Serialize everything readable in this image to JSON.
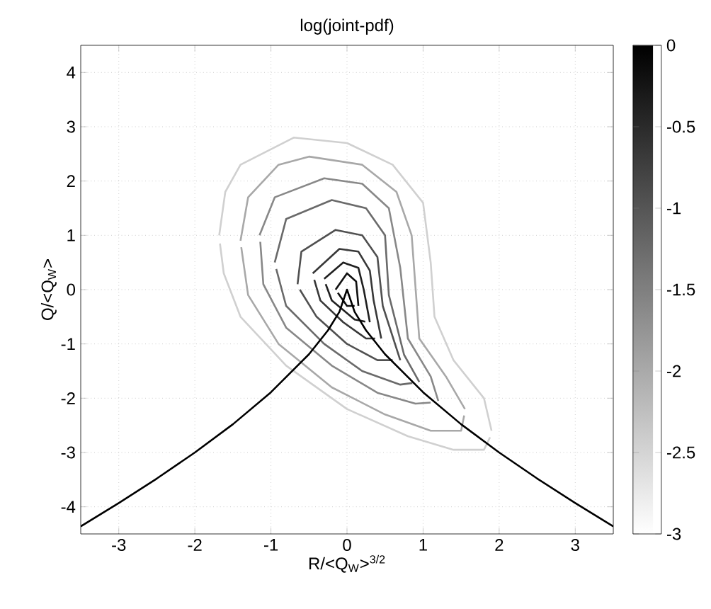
{
  "chart_data": {
    "type": "line",
    "title": "log(joint-pdf)",
    "xlabel": "R/<Q$_{W}$>$^{3/2}$",
    "ylabel": "Q/<Q$_{W}$>",
    "xlim": [
      -3.5,
      3.5
    ],
    "ylim": [
      -4.5,
      4.5
    ],
    "xticks": [
      -3,
      -2,
      -1,
      0,
      1,
      2,
      3
    ],
    "yticks": [
      -4,
      -3,
      -2,
      -1,
      0,
      1,
      2,
      3,
      4
    ],
    "grid": true,
    "clim": [
      -3,
      0
    ],
    "cticks": [
      -3,
      -2.5,
      -2,
      -1.5,
      -1,
      -0.5,
      0
    ],
    "series": [
      {
        "color": "#d0d0d0",
        "x": [
          -1.68,
          -1.6,
          -1.4,
          -0.7,
          0,
          0.6,
          1.0,
          1.1,
          1.15,
          1.4,
          1.8,
          1.9
        ],
        "values": [
          1.0,
          1.8,
          2.3,
          2.8,
          2.7,
          2.3,
          1.6,
          0.5,
          -0.5,
          -1.3,
          -2.0,
          -2.6
        ]
      },
      {
        "color": "#d0d0d0",
        "x": [
          -1.67,
          -1.62,
          -1.4,
          -0.8,
          0,
          0.8,
          1.4,
          1.8,
          1.88
        ],
        "values": [
          0.85,
          0.3,
          -0.5,
          -1.4,
          -2.2,
          -2.7,
          -2.95,
          -2.95,
          -2.72
        ]
      },
      {
        "color": "#a8a8a8",
        "x": [
          -1.4,
          -1.3,
          -0.9,
          -0.5,
          0.2,
          0.65,
          0.85,
          0.95,
          1.3,
          1.55
        ],
        "values": [
          0.9,
          1.7,
          2.3,
          2.45,
          2.3,
          1.8,
          1.0,
          -0.9,
          -1.6,
          -2.2
        ]
      },
      {
        "color": "#a8a8a8",
        "x": [
          -1.39,
          -1.3,
          -0.9,
          -0.2,
          0.5,
          1.1,
          1.5,
          1.54
        ],
        "values": [
          0.78,
          -0.1,
          -1.0,
          -1.8,
          -2.3,
          -2.6,
          -2.6,
          -2.32
        ]
      },
      {
        "color": "#888888",
        "x": [
          -1.15,
          -0.95,
          -0.3,
          0.2,
          0.55,
          0.7,
          0.8,
          1.1,
          1.2
        ],
        "values": [
          1.0,
          1.7,
          2.05,
          1.95,
          1.5,
          0.4,
          -0.9,
          -1.6,
          -2.05
        ]
      },
      {
        "color": "#888888",
        "x": [
          -1.14,
          -1.1,
          -0.8,
          -0.2,
          0.4,
          0.9,
          1.1
        ],
        "values": [
          0.88,
          0.1,
          -0.7,
          -1.4,
          -1.9,
          -2.1,
          -2.08
        ]
      },
      {
        "color": "#6a6a6a",
        "x": [
          -0.95,
          -0.8,
          -0.2,
          0.25,
          0.5,
          0.55,
          0.75,
          0.95
        ],
        "values": [
          0.5,
          1.3,
          1.65,
          1.5,
          1.0,
          -0.1,
          -1.2,
          -1.7
        ]
      },
      {
        "color": "#6a6a6a",
        "x": [
          -0.93,
          -0.8,
          -0.3,
          0.2,
          0.7,
          0.86
        ],
        "values": [
          0.38,
          -0.3,
          -1.0,
          -1.5,
          -1.75,
          -1.72
        ]
      },
      {
        "color": "#505050",
        "x": [
          -0.65,
          -0.6,
          -0.15,
          0.2,
          0.4,
          0.47,
          0.7
        ],
        "values": [
          0.1,
          0.7,
          1.1,
          1.0,
          0.6,
          -0.3,
          -1.3
        ]
      },
      {
        "color": "#505050",
        "x": [
          -0.62,
          -0.4,
          0.0,
          0.4,
          0.6
        ],
        "values": [
          0.0,
          -0.5,
          -1.0,
          -1.3,
          -1.3
        ]
      },
      {
        "color": "#383838",
        "x": [
          -0.45,
          -0.1,
          0.15,
          0.3,
          0.35,
          0.45
        ],
        "values": [
          0.3,
          0.75,
          0.7,
          0.35,
          -0.2,
          -0.9
        ]
      },
      {
        "color": "#383838",
        "x": [
          -0.43,
          -0.35,
          -0.05,
          0.25,
          0.37
        ],
        "values": [
          0.18,
          -0.2,
          -0.6,
          -0.9,
          -0.9
        ]
      },
      {
        "color": "#202020",
        "x": [
          -0.3,
          -0.05,
          0.15,
          0.22,
          0.3
        ],
        "values": [
          0.2,
          0.5,
          0.4,
          0.0,
          -0.6
        ]
      },
      {
        "color": "#202020",
        "x": [
          -0.28,
          -0.2,
          0.1,
          0.24
        ],
        "values": [
          0.1,
          -0.2,
          -0.55,
          -0.59
        ]
      },
      {
        "color": "#101010",
        "x": [
          -0.15,
          0,
          0.12,
          0.15
        ],
        "values": [
          0,
          0.3,
          0.15,
          -0.3
        ]
      },
      {
        "color": "#101010",
        "x": [
          -0.12,
          0.0,
          0.1
        ],
        "values": [
          -0.06,
          -0.3,
          -0.3
        ]
      },
      {
        "color": "#000000",
        "x": [
          -3.5,
          -3,
          -2.5,
          -2,
          -1.5,
          -1,
          -0.5,
          -0.25,
          -0.1,
          0,
          0.1,
          0.25,
          0.5,
          1,
          1.5,
          2,
          2.5,
          3,
          3.5
        ],
        "values": [
          -4.36,
          -3.93,
          -3.48,
          -3.0,
          -2.48,
          -1.89,
          -1.19,
          -0.75,
          -0.41,
          0,
          -0.41,
          -0.75,
          -1.19,
          -1.89,
          -2.48,
          -3.0,
          -3.48,
          -3.93,
          -4.36
        ]
      }
    ]
  }
}
